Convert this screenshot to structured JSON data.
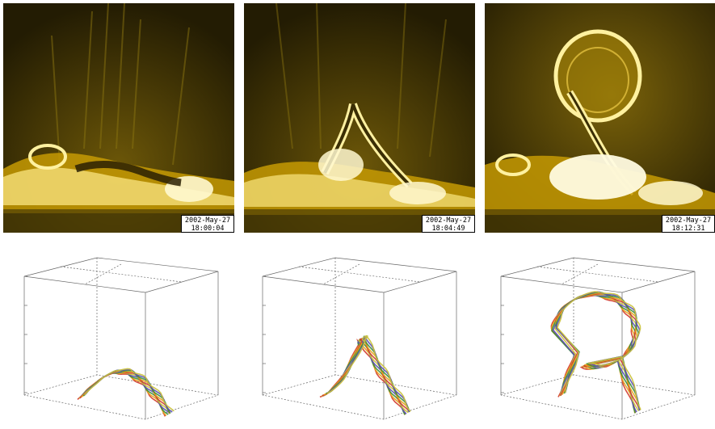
{
  "observations": [
    {
      "date": "2002-May-27",
      "time": "18:00:04"
    },
    {
      "date": "2002-May-27",
      "time": "18:04:49"
    },
    {
      "date": "2002-May-27",
      "time": "18:12:31"
    }
  ],
  "simulations": [
    {
      "stage": "arch"
    },
    {
      "stage": "kinked-rise"
    },
    {
      "stage": "erupted-loop"
    }
  ],
  "colors": {
    "image_background": "#2a2204",
    "emission_bright": "#fff6c0",
    "emission_mid": "#e2b400",
    "flux_rope_strands": [
      "#d23a2a",
      "#e9a11a",
      "#3a8f3a",
      "#5a4fb5",
      "#c9c13a"
    ]
  }
}
